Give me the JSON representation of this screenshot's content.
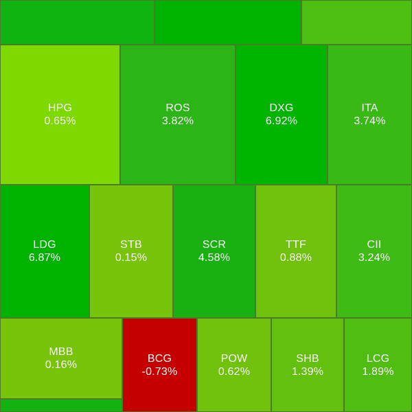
{
  "heatmap": {
    "tiles": [
      {
        "id": "top-1",
        "symbol": "",
        "change": "",
        "color": "#0fb30f"
      },
      {
        "id": "top-2",
        "symbol": "",
        "change": "",
        "color": "#00b200"
      },
      {
        "id": "top-3",
        "symbol": "",
        "change": "",
        "color": "#4cbf12"
      },
      {
        "id": "hpg",
        "symbol": "HPG",
        "change": "0.65%",
        "color": "#7dd900"
      },
      {
        "id": "ros",
        "symbol": "ROS",
        "change": "3.82%",
        "color": "#2cb516"
      },
      {
        "id": "dxg",
        "symbol": "DXG",
        "change": "6.92%",
        "color": "#00b400"
      },
      {
        "id": "ita",
        "symbol": "ITA",
        "change": "3.74%",
        "color": "#38b914"
      },
      {
        "id": "ldg",
        "symbol": "LDG",
        "change": "6.87%",
        "color": "#00b300"
      },
      {
        "id": "stb",
        "symbol": "STB",
        "change": "0.15%",
        "color": "#78c40a"
      },
      {
        "id": "scr",
        "symbol": "SCR",
        "change": "4.58%",
        "color": "#18b111"
      },
      {
        "id": "ttf",
        "symbol": "TTF",
        "change": "0.88%",
        "color": "#70c20c"
      },
      {
        "id": "cii",
        "symbol": "CII",
        "change": "3.24%",
        "color": "#3ebb14"
      },
      {
        "id": "mbb",
        "symbol": "MBB",
        "change": "0.16%",
        "color": "#78c40a"
      },
      {
        "id": "mbb-sub",
        "symbol": "",
        "change": "",
        "color": "#13b112"
      },
      {
        "id": "bcg",
        "symbol": "BCG",
        "change": "-0.73%",
        "color": "#c40000"
      },
      {
        "id": "pow",
        "symbol": "POW",
        "change": "0.62%",
        "color": "#70c20c"
      },
      {
        "id": "shb",
        "symbol": "SHB",
        "change": "1.39%",
        "color": "#64c00f"
      },
      {
        "id": "lcg",
        "symbol": "LCG",
        "change": "1.89%",
        "color": "#50bd12"
      }
    ]
  }
}
